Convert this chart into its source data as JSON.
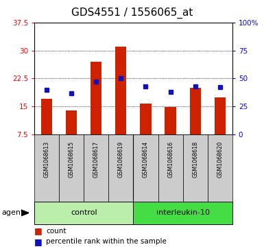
{
  "title": "GDS4551 / 1556065_at",
  "samples": [
    "GSM1068613",
    "GSM1068615",
    "GSM1068617",
    "GSM1068619",
    "GSM1068614",
    "GSM1068616",
    "GSM1068618",
    "GSM1068620"
  ],
  "counts": [
    17.0,
    14.0,
    27.0,
    31.0,
    15.8,
    14.8,
    20.0,
    17.5
  ],
  "percentile_ranks": [
    40,
    37,
    47,
    50,
    43,
    38,
    43,
    42
  ],
  "ylim_left": [
    7.5,
    37.5
  ],
  "yticks_left": [
    7.5,
    15.0,
    22.5,
    30.0,
    37.5
  ],
  "ylim_right": [
    0,
    100
  ],
  "yticks_right": [
    0,
    25,
    50,
    75,
    100
  ],
  "bar_color": "#cc2200",
  "dot_color": "#1111bb",
  "group_labels": [
    "control",
    "interleukin-10"
  ],
  "ctrl_color": "#bbeeaa",
  "il10_color": "#44dd44",
  "agent_label": "agent",
  "legend_count": "count",
  "legend_percentile": "percentile rank within the sample",
  "title_fontsize": 11,
  "plot_bg": "#ffffff",
  "sample_box_color": "#cccccc",
  "bar_width": 0.45
}
